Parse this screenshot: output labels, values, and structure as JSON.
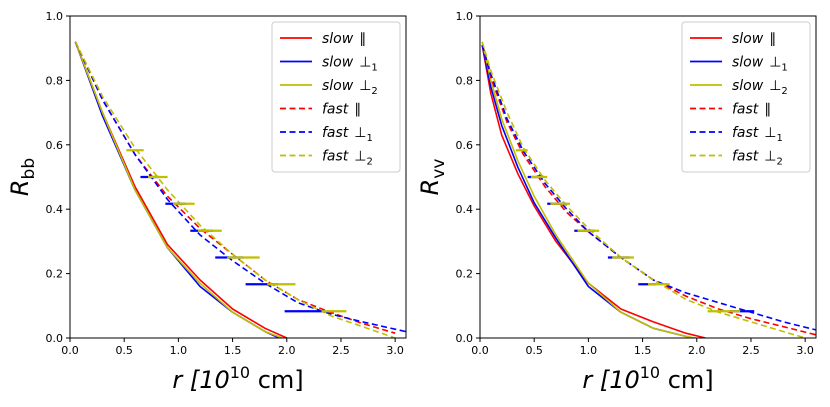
{
  "chart_data": [
    {
      "type": "line",
      "ylabel_main": "R",
      "ylabel_sub": "bb",
      "xlabel_main": "r [10",
      "xlabel_sup": "10",
      "xlabel_unit": " cm]",
      "xlim": [
        0.0,
        3.1
      ],
      "ylim": [
        0.0,
        1.0
      ],
      "xticks": [
        "0.0",
        "0.5",
        "1.0",
        "1.5",
        "2.0",
        "2.5",
        "3.0"
      ],
      "yticks": [
        "0.0",
        "0.2",
        "0.4",
        "0.6",
        "0.8",
        "1.0"
      ],
      "legend_position": "top-right",
      "series": [
        {
          "name": "slow ∥",
          "name_main": "slow",
          "name_sym": "∥",
          "name_sub": "",
          "color": "#ff0000",
          "dash": false,
          "x": [
            0.05,
            0.3,
            0.6,
            0.9,
            1.2,
            1.5,
            1.8,
            2.0
          ],
          "y": [
            0.92,
            0.7,
            0.47,
            0.29,
            0.18,
            0.09,
            0.03,
            0.0
          ]
        },
        {
          "name": "slow ⊥1",
          "name_main": "slow",
          "name_sym": "⊥",
          "name_sub": "1",
          "color": "#0000ff",
          "dash": false,
          "x": [
            0.05,
            0.3,
            0.6,
            0.9,
            1.2,
            1.5,
            1.8,
            1.93
          ],
          "y": [
            0.92,
            0.69,
            0.46,
            0.28,
            0.16,
            0.08,
            0.02,
            0.0
          ]
        },
        {
          "name": "slow ⊥2",
          "name_main": "slow",
          "name_sym": "⊥",
          "name_sub": "2",
          "color": "#bfbf00",
          "dash": false,
          "x": [
            0.05,
            0.3,
            0.6,
            0.9,
            1.2,
            1.5,
            1.8,
            1.96
          ],
          "y": [
            0.92,
            0.7,
            0.46,
            0.28,
            0.17,
            0.08,
            0.02,
            0.0
          ]
        },
        {
          "name": "fast ∥",
          "name_main": "fast",
          "name_sym": "∥",
          "name_sub": "",
          "color": "#ff0000",
          "dash": true,
          "x": [
            0.05,
            0.3,
            0.6,
            0.9,
            1.2,
            1.5,
            1.8,
            2.1,
            2.4,
            2.7,
            3.0
          ],
          "y": [
            0.92,
            0.74,
            0.57,
            0.44,
            0.34,
            0.26,
            0.18,
            0.12,
            0.08,
            0.045,
            0.015
          ]
        },
        {
          "name": "fast ⊥1",
          "name_main": "fast",
          "name_sym": "⊥",
          "name_sub": "1",
          "color": "#0000ff",
          "dash": true,
          "x": [
            0.05,
            0.3,
            0.6,
            0.9,
            1.2,
            1.5,
            1.8,
            2.1,
            2.4,
            2.7,
            3.1
          ],
          "y": [
            0.92,
            0.74,
            0.57,
            0.43,
            0.32,
            0.24,
            0.17,
            0.11,
            0.075,
            0.05,
            0.02
          ]
        },
        {
          "name": "fast ⊥2",
          "name_main": "fast",
          "name_sym": "⊥",
          "name_sub": "2",
          "color": "#bfbf00",
          "dash": true,
          "x": [
            0.05,
            0.3,
            0.6,
            0.9,
            1.2,
            1.5,
            1.8,
            2.1,
            2.4,
            2.7,
            3.0
          ],
          "y": [
            0.92,
            0.75,
            0.59,
            0.46,
            0.35,
            0.26,
            0.18,
            0.12,
            0.07,
            0.035,
            0.0
          ]
        }
      ],
      "error_bars": [
        {
          "color": "#0000ff",
          "y": 0.5,
          "x0": 0.65,
          "x1": 0.82
        },
        {
          "color": "#0000ff",
          "y": 0.417,
          "x0": 0.88,
          "x1": 1.07
        },
        {
          "color": "#0000ff",
          "y": 0.333,
          "x0": 1.11,
          "x1": 1.32
        },
        {
          "color": "#0000ff",
          "y": 0.25,
          "x0": 1.34,
          "x1": 1.6
        },
        {
          "color": "#0000ff",
          "y": 0.167,
          "x0": 1.62,
          "x1": 1.92
        },
        {
          "color": "#0000ff",
          "y": 0.083,
          "x0": 1.98,
          "x1": 2.35
        },
        {
          "color": "#bfbf00",
          "y": 0.583,
          "x0": 0.52,
          "x1": 0.68
        },
        {
          "color": "#bfbf00",
          "y": 0.5,
          "x0": 0.72,
          "x1": 0.9
        },
        {
          "color": "#bfbf00",
          "y": 0.417,
          "x0": 0.95,
          "x1": 1.15
        },
        {
          "color": "#bfbf00",
          "y": 0.333,
          "x0": 1.18,
          "x1": 1.4
        },
        {
          "color": "#bfbf00",
          "y": 0.25,
          "x0": 1.45,
          "x1": 1.75
        },
        {
          "color": "#bfbf00",
          "y": 0.167,
          "x0": 1.82,
          "x1": 2.08
        },
        {
          "color": "#bfbf00",
          "y": 0.083,
          "x0": 2.32,
          "x1": 2.55
        }
      ]
    },
    {
      "type": "line",
      "ylabel_main": "R",
      "ylabel_sub": "vv",
      "xlabel_main": "r [10",
      "xlabel_sup": "10",
      "xlabel_unit": " cm]",
      "xlim": [
        0.0,
        3.1
      ],
      "ylim": [
        0.0,
        1.0
      ],
      "xticks": [
        "0.0",
        "0.5",
        "1.0",
        "1.5",
        "2.0",
        "2.5",
        "3.0"
      ],
      "yticks": [
        "0.0",
        "0.2",
        "0.4",
        "0.6",
        "0.8",
        "1.0"
      ],
      "legend_position": "top-right",
      "series": [
        {
          "name": "slow ∥",
          "name_main": "slow",
          "name_sym": "∥",
          "name_sub": "",
          "color": "#ff0000",
          "dash": false,
          "x": [
            0.02,
            0.1,
            0.2,
            0.35,
            0.5,
            0.7,
            1.0,
            1.3,
            1.6,
            1.9,
            2.08
          ],
          "y": [
            0.91,
            0.76,
            0.63,
            0.51,
            0.41,
            0.3,
            0.17,
            0.09,
            0.05,
            0.015,
            0.0
          ]
        },
        {
          "name": "slow ⊥1",
          "name_main": "slow",
          "name_sym": "⊥",
          "name_sub": "1",
          "color": "#0000ff",
          "dash": false,
          "x": [
            0.02,
            0.1,
            0.2,
            0.35,
            0.5,
            0.7,
            1.0,
            1.3,
            1.6,
            1.9,
            1.97
          ],
          "y": [
            0.91,
            0.78,
            0.66,
            0.53,
            0.42,
            0.31,
            0.16,
            0.08,
            0.03,
            0.005,
            0.0
          ]
        },
        {
          "name": "slow ⊥2",
          "name_main": "slow",
          "name_sym": "⊥",
          "name_sub": "2",
          "color": "#bfbf00",
          "dash": false,
          "x": [
            0.02,
            0.1,
            0.2,
            0.35,
            0.5,
            0.7,
            1.0,
            1.3,
            1.6,
            1.9,
            1.99
          ],
          "y": [
            0.92,
            0.8,
            0.68,
            0.55,
            0.44,
            0.32,
            0.17,
            0.08,
            0.03,
            0.005,
            0.0
          ]
        },
        {
          "name": "fast ∥",
          "name_main": "fast",
          "name_sym": "∥",
          "name_sub": "",
          "color": "#ff0000",
          "dash": true,
          "x": [
            0.02,
            0.1,
            0.25,
            0.4,
            0.6,
            0.8,
            1.0,
            1.3,
            1.6,
            1.9,
            2.2,
            2.5,
            2.8,
            3.1
          ],
          "y": [
            0.91,
            0.81,
            0.67,
            0.57,
            0.47,
            0.39,
            0.33,
            0.25,
            0.18,
            0.13,
            0.09,
            0.06,
            0.035,
            0.01
          ]
        },
        {
          "name": "fast ⊥1",
          "name_main": "fast",
          "name_sym": "⊥",
          "name_sub": "1",
          "color": "#0000ff",
          "dash": true,
          "x": [
            0.02,
            0.1,
            0.25,
            0.4,
            0.6,
            0.8,
            1.0,
            1.3,
            1.6,
            1.9,
            2.2,
            2.5,
            2.8,
            3.1
          ],
          "y": [
            0.91,
            0.82,
            0.68,
            0.58,
            0.48,
            0.4,
            0.33,
            0.25,
            0.18,
            0.14,
            0.11,
            0.08,
            0.05,
            0.025
          ]
        },
        {
          "name": "fast ⊥2",
          "name_main": "fast",
          "name_sym": "⊥",
          "name_sub": "2",
          "color": "#bfbf00",
          "dash": true,
          "x": [
            0.02,
            0.1,
            0.25,
            0.4,
            0.6,
            0.8,
            1.0,
            1.3,
            1.6,
            1.9,
            2.2,
            2.5,
            2.8,
            3.0
          ],
          "y": [
            0.92,
            0.83,
            0.7,
            0.59,
            0.49,
            0.41,
            0.34,
            0.25,
            0.18,
            0.12,
            0.08,
            0.05,
            0.02,
            0.0
          ]
        }
      ],
      "error_bars": [
        {
          "color": "#0000ff",
          "y": 0.5,
          "x0": 0.44,
          "x1": 0.59
        },
        {
          "color": "#0000ff",
          "y": 0.417,
          "x0": 0.62,
          "x1": 0.8
        },
        {
          "color": "#0000ff",
          "y": 0.333,
          "x0": 0.87,
          "x1": 1.06
        },
        {
          "color": "#0000ff",
          "y": 0.25,
          "x0": 1.18,
          "x1": 1.38
        },
        {
          "color": "#0000ff",
          "y": 0.167,
          "x0": 1.46,
          "x1": 1.62
        },
        {
          "color": "#0000ff",
          "y": 0.083,
          "x0": 2.3,
          "x1": 2.53
        },
        {
          "color": "#bfbf00",
          "y": 0.583,
          "x0": 0.33,
          "x1": 0.44
        },
        {
          "color": "#bfbf00",
          "y": 0.5,
          "x0": 0.47,
          "x1": 0.62
        },
        {
          "color": "#bfbf00",
          "y": 0.417,
          "x0": 0.65,
          "x1": 0.83
        },
        {
          "color": "#bfbf00",
          "y": 0.333,
          "x0": 0.9,
          "x1": 1.1
        },
        {
          "color": "#bfbf00",
          "y": 0.25,
          "x0": 1.22,
          "x1": 1.42
        },
        {
          "color": "#bfbf00",
          "y": 0.167,
          "x0": 1.55,
          "x1": 1.75
        },
        {
          "color": "#bfbf00",
          "y": 0.083,
          "x0": 2.1,
          "x1": 2.4
        }
      ]
    }
  ]
}
